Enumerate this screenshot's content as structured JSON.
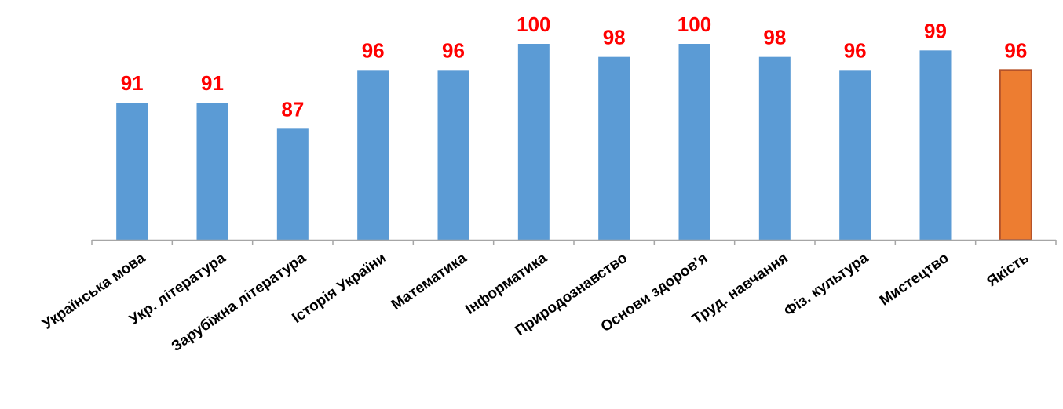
{
  "chart_data": {
    "type": "bar",
    "title": "",
    "xlabel": "",
    "ylabel": "",
    "ylim": [
      70,
      100
    ],
    "grid": false,
    "legend": "none",
    "categories": [
      "Українська  мова",
      "Укр. література",
      "Зарубіжна література",
      "Історія України",
      "Математика",
      "Інформатика",
      "Природознавство",
      "Основи здоров'я",
      "Труд. навчання",
      "Фіз. культура",
      "Мистецтво",
      "Якість"
    ],
    "values": [
      91,
      91,
      87,
      96,
      96,
      100,
      98,
      100,
      98,
      96,
      99,
      96
    ],
    "data_labels": [
      "91",
      "91",
      "87",
      "96",
      "96",
      "100",
      "98",
      "100",
      "98",
      "96",
      "99",
      "96"
    ],
    "highlight_index": 11
  },
  "colors": {
    "bar": "#5b9bd5",
    "highlight_bar": "#ed7d31",
    "highlight_border": "#b5532a",
    "data_label": "#ff0000",
    "axis": "#a6a6a6",
    "tick_label": "#000000"
  }
}
